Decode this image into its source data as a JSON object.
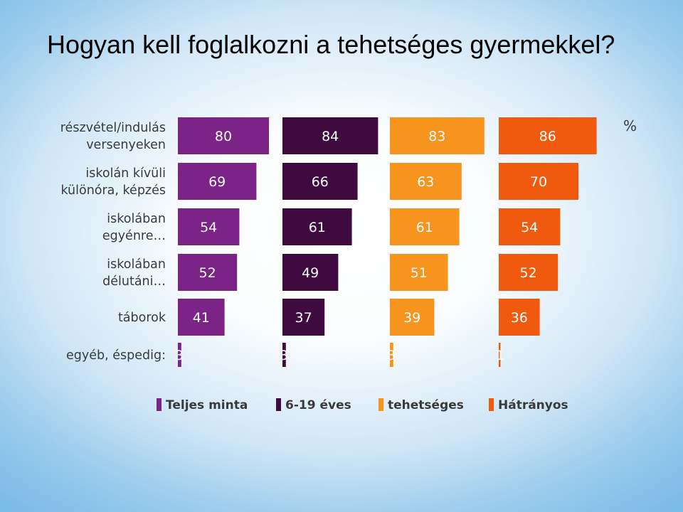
{
  "slide": {
    "title": "Hogyan kell foglalkozni a tehetséges gyermekkel?"
  },
  "chart_data": {
    "type": "bar",
    "orientation": "horizontal",
    "layout": "panels-per-series",
    "unit_label": "%",
    "categories": [
      [
        "részvétel/indulás",
        "versenyeken"
      ],
      [
        "iskolán kívüli",
        "különóra, képzés"
      ],
      [
        "iskolában",
        "egyénre…"
      ],
      [
        "iskolában",
        "délutáni…"
      ],
      [
        "táborok"
      ],
      [
        "egyéb, éspedig:"
      ]
    ],
    "series": [
      {
        "name": "Teljes minta",
        "color": "#7b2387",
        "values": [
          80,
          69,
          54,
          52,
          41,
          3
        ],
        "labels": [
          "80",
          "69",
          "54",
          "52",
          "41",
          "3"
        ]
      },
      {
        "name": "6-19 éves",
        "color": "#3e0a40",
        "values": [
          84,
          66,
          61,
          49,
          37,
          3
        ],
        "labels": [
          "84",
          "66",
          "61",
          "49",
          "37",
          "3"
        ]
      },
      {
        "name": "tehetséges",
        "color": "#f7941e",
        "values": [
          83,
          63,
          61,
          51,
          39,
          3
        ],
        "labels": [
          "83",
          "63",
          "61",
          "51",
          "39",
          "3"
        ]
      },
      {
        "name": "Hátrányos",
        "color": "#f05a0f",
        "values": [
          86,
          70,
          54,
          52,
          36,
          1
        ],
        "labels": [
          "86",
          "70",
          "54",
          "52",
          "36",
          "1"
        ]
      }
    ],
    "legend_position": "bottom",
    "grid": false
  }
}
